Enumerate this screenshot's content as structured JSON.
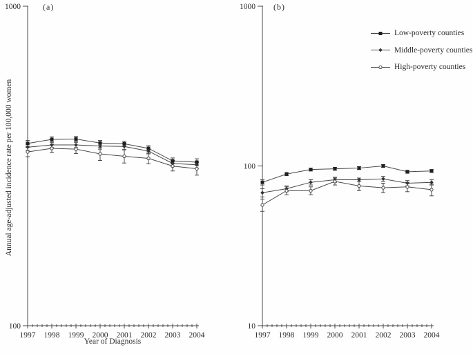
{
  "figure": {
    "background": "#fefefe",
    "ink_color": "#474747",
    "marker_color": "#1f1f1f",
    "text_color": "#2b2b2b",
    "y_axis_title": "Annual age-adjusted incidence rate per 100,000 women",
    "x_axis_title": "Year of Diagnosis"
  },
  "legend": {
    "items": [
      {
        "label": "Low-poverty counties",
        "marker": "filled-square"
      },
      {
        "label": "Middle-poverty counties",
        "marker": "filled-diamond"
      },
      {
        "label": "High-poverty counties",
        "marker": "open-circle"
      }
    ]
  },
  "chart_data": [
    {
      "type": "line",
      "panel_label": "(a)",
      "x": [
        1997,
        1998,
        1999,
        2000,
        2001,
        2002,
        2003,
        2004
      ],
      "xlabel": "Year of Diagnosis",
      "ylabel": "Annual age-adjusted incidence rate per 100,000 women",
      "yscale": "log",
      "ylim": [
        100,
        1000
      ],
      "yticks": [
        100,
        1000
      ],
      "grid": false,
      "series": [
        {
          "name": "Low-poverty counties",
          "marker": "filled-square",
          "values": [
            372,
            383,
            384,
            373,
            371,
            359,
            328,
            325
          ],
          "errors": [
            8,
            7,
            7,
            7,
            7,
            7,
            7,
            8
          ]
        },
        {
          "name": "Middle-poverty counties",
          "marker": "filled-diamond",
          "values": [
            362,
            368,
            368,
            365,
            364,
            352,
            322,
            319
          ],
          "errors": [
            8,
            7,
            7,
            8,
            8,
            7,
            7,
            8
          ]
        },
        {
          "name": "High-poverty counties",
          "marker": "open-circle",
          "values": [
            350,
            359,
            357,
            345,
            339,
            334,
            316,
            310
          ],
          "errors": [
            12,
            11,
            11,
            16,
            16,
            13,
            11,
            14
          ]
        }
      ]
    },
    {
      "type": "line",
      "panel_label": "(b)",
      "x": [
        1997,
        1998,
        1999,
        2000,
        2001,
        2002,
        2003,
        2004
      ],
      "xlabel": "",
      "ylabel": "",
      "yscale": "log",
      "ylim": [
        10,
        1000
      ],
      "yticks": [
        10,
        100,
        1000
      ],
      "grid": false,
      "series": [
        {
          "name": "Low-poverty counties",
          "marker": "filled-square",
          "values": [
            79,
            89,
            95,
            96,
            97,
            100,
            92,
            93
          ],
          "errors": [
            3,
            2,
            2,
            2,
            2,
            2,
            2,
            2
          ]
        },
        {
          "name": "Middle-poverty counties",
          "marker": "filled-diamond",
          "values": [
            68,
            72,
            79,
            82,
            82,
            83,
            78,
            79
          ],
          "errors": [
            4,
            3,
            3,
            3,
            2,
            3,
            3,
            3
          ]
        },
        {
          "name": "High-poverty counties",
          "marker": "open-circle",
          "values": [
            57,
            70,
            70,
            80,
            75,
            73,
            74,
            71
          ],
          "errors": [
            5,
            4,
            4,
            4,
            5,
            5,
            5,
            6
          ]
        }
      ]
    }
  ]
}
